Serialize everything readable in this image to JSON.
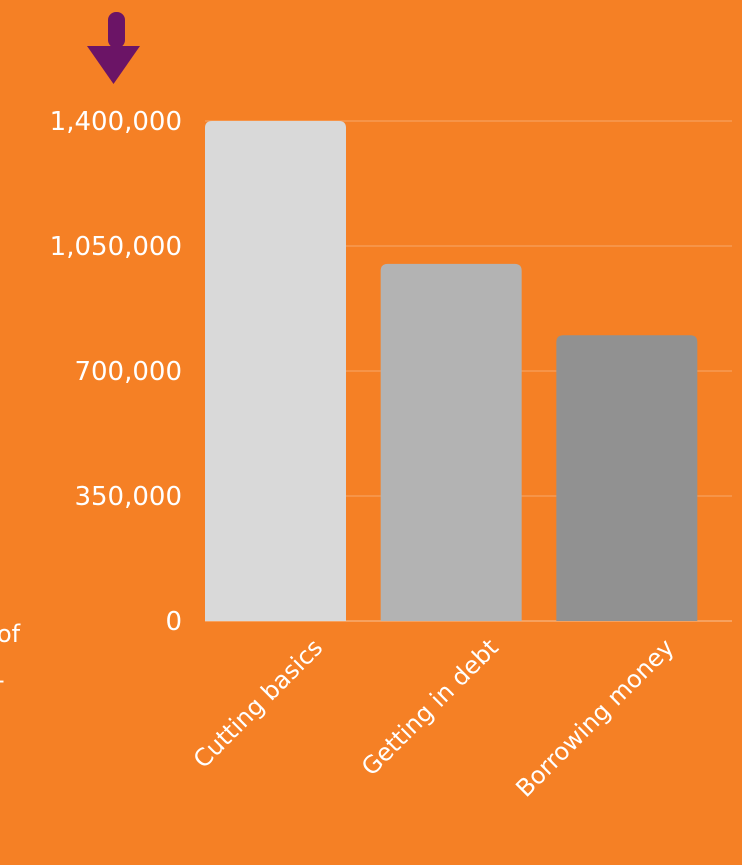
{
  "page": {
    "background_color": "#F58025",
    "left_edge_text": [
      "of",
      "-"
    ]
  },
  "icons": {
    "arrow": {
      "name": "down-arrow-icon",
      "color": "#6B1466"
    }
  },
  "chart_data": {
    "type": "bar",
    "categories": [
      "Cutting basics",
      "Getting in debt",
      "Borrowing money"
    ],
    "values": [
      1400000,
      1000000,
      800000
    ],
    "bar_colors": [
      "#D9D9D9",
      "#B3B3B3",
      "#919191"
    ],
    "ylim": [
      0,
      1400000
    ],
    "yticks": [
      0,
      350000,
      700000,
      1050000,
      1400000
    ],
    "ytick_labels": [
      "0",
      "350,000",
      "700,000",
      "1,050,000",
      "1,400,000"
    ],
    "grid": true,
    "gridline_color": "#F7A15E",
    "text_color": "#FFFFFF",
    "title": "",
    "xlabel": "",
    "ylabel": ""
  }
}
